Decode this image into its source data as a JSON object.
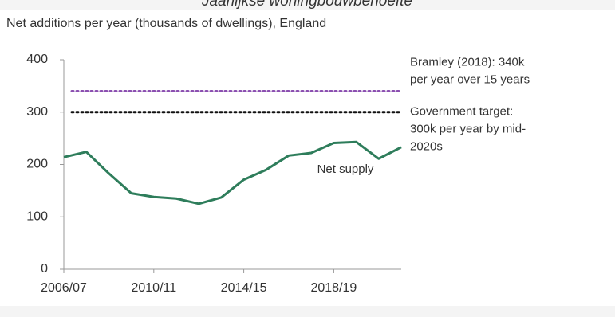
{
  "chart_data": {
    "type": "line",
    "heading": "Jaarlijkse woningbouwbehoefte",
    "title": "Net additions per year (thousands of dwellings), England",
    "categories": [
      "2006/07",
      null,
      null,
      null,
      "2010/11",
      null,
      null,
      null,
      "2014/15",
      null,
      null,
      null,
      "2018/19",
      null,
      null,
      null
    ],
    "series": [
      {
        "name": "Net supply",
        "color": "#2e7d5b",
        "values": [
          214,
          224,
          183,
          145,
          138,
          135,
          125,
          137,
          171,
          190,
          217,
          222,
          241,
          243,
          211,
          233
        ]
      }
    ],
    "reference_lines": [
      {
        "value": 340,
        "color": "#8b4fb0",
        "label": [
          "Bramley (2018): 340k",
          "per year over 15 years"
        ]
      },
      {
        "value": 300,
        "color": "#111111",
        "label": [
          "Government target:",
          "300k per year by mid-",
          "2020s"
        ]
      }
    ],
    "ylim": [
      0,
      400
    ],
    "yticks": [
      0,
      100,
      200,
      300,
      400
    ]
  }
}
